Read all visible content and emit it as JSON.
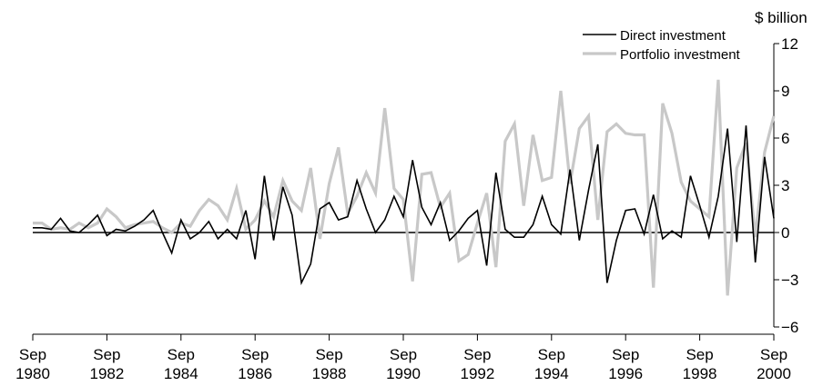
{
  "chart_data": {
    "type": "line",
    "ylabel": "$ billion",
    "ylim": [
      -6,
      12
    ],
    "xlim": [
      "Sep 1980",
      "Sep 2000"
    ],
    "yticks": [
      12,
      9,
      6,
      3,
      0,
      -3,
      -6
    ],
    "ytick_labels": [
      "12",
      "9",
      "6",
      "3",
      "0",
      "−3",
      "−6"
    ],
    "xticks": [
      {
        "month": "Sep",
        "year": "1980"
      },
      {
        "month": "Sep",
        "year": "1982"
      },
      {
        "month": "Sep",
        "year": "1984"
      },
      {
        "month": "Sep",
        "year": "1986"
      },
      {
        "month": "Sep",
        "year": "1988"
      },
      {
        "month": "Sep",
        "year": "1990"
      },
      {
        "month": "Sep",
        "year": "1992"
      },
      {
        "month": "Sep",
        "year": "1994"
      },
      {
        "month": "Sep",
        "year": "1996"
      },
      {
        "month": "Sep",
        "year": "1998"
      },
      {
        "month": "Sep",
        "year": "2000"
      }
    ],
    "grid": false,
    "legend_position": "top-right",
    "series": [
      {
        "name": "Direct investment",
        "color": "#000000",
        "values": [
          0.3,
          0.3,
          0.2,
          0.9,
          0.1,
          0.0,
          0.5,
          1.1,
          -0.2,
          0.2,
          0.1,
          0.4,
          0.8,
          1.4,
          0.0,
          -1.3,
          0.8,
          -0.4,
          0.0,
          0.7,
          -0.4,
          0.2,
          -0.4,
          1.4,
          -1.7,
          3.6,
          -0.5,
          2.9,
          1.1,
          -3.2,
          -2.0,
          1.5,
          1.9,
          0.8,
          1.0,
          3.3,
          1.5,
          0.0,
          0.8,
          2.3,
          1.0,
          4.6,
          1.6,
          0.5,
          1.9,
          -0.5,
          0.1,
          0.9,
          1.4,
          -2.1,
          3.8,
          0.2,
          -0.3,
          -0.3,
          0.5,
          2.3,
          0.5,
          -0.1,
          4.0,
          -0.5,
          2.7,
          5.6,
          -3.2,
          -0.5,
          1.4,
          1.5,
          -0.1,
          2.4,
          -0.4,
          0.1,
          -0.3,
          3.6,
          1.7,
          -0.3,
          2.3,
          6.6,
          -0.6,
          6.8,
          -1.9,
          4.8,
          0.9
        ]
      },
      {
        "name": "Portfolio investment",
        "color": "#c8c8c8",
        "values": [
          0.6,
          0.6,
          0.2,
          0.3,
          0.2,
          0.6,
          0.3,
          0.6,
          1.5,
          1.0,
          0.3,
          0.5,
          0.6,
          0.7,
          0.3,
          0.0,
          0.6,
          0.4,
          1.4,
          2.1,
          1.7,
          0.8,
          2.8,
          0.2,
          0.8,
          2.0,
          1.0,
          3.3,
          2.0,
          1.4,
          4.1,
          -0.4,
          3.1,
          5.4,
          1.2,
          2.3,
          3.8,
          2.5,
          7.9,
          2.8,
          2.1,
          -3.1,
          3.7,
          3.8,
          1.6,
          2.5,
          -1.8,
          -1.4,
          0.6,
          2.5,
          -2.2,
          5.8,
          6.9,
          1.7,
          6.2,
          3.3,
          3.5,
          9.0,
          3.1,
          6.6,
          7.4,
          0.8,
          6.4,
          6.9,
          6.3,
          6.2,
          6.2,
          -3.5,
          8.2,
          6.3,
          3.2,
          2.0,
          1.5,
          1.0,
          9.7,
          -4.0,
          4.1,
          5.7,
          -0.3,
          5.1,
          7.4
        ]
      }
    ]
  }
}
